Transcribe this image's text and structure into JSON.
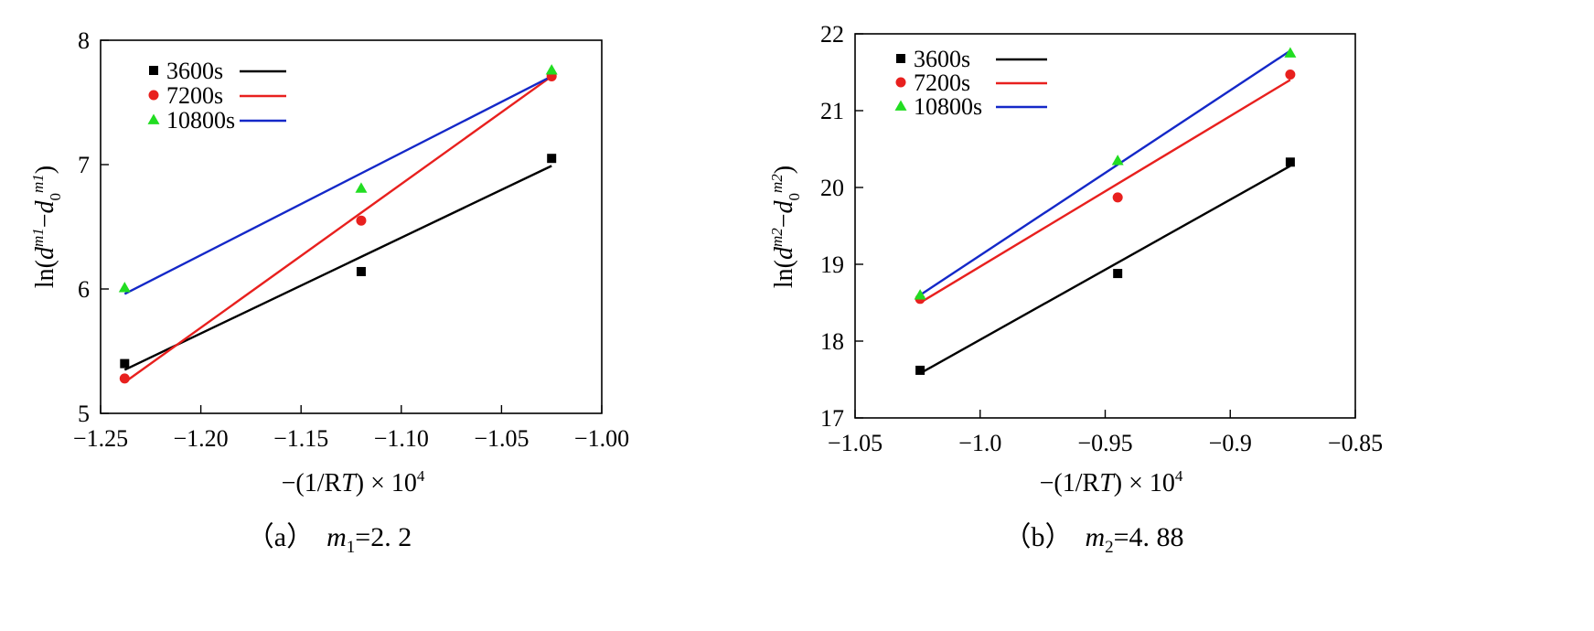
{
  "colors": {
    "3600s": "#000000",
    "7200s": "#e8201e",
    "10800s": "#1428c8",
    "10800s_marker": "#22dd22"
  },
  "chart_data": [
    {
      "type": "scatter",
      "panel": "a",
      "caption": {
        "prefix": "（a）",
        "var": "m",
        "sub": "1",
        "value": "=2. 2"
      },
      "ylabel": {
        "a": "ln(",
        "b": "d",
        "c": "m1",
        "d": "−",
        "e": "d",
        "f": "0",
        "g": "m1",
        "h": ")"
      },
      "xlabel": {
        "pre": "−(1/R",
        "it": "T",
        "post": ") × 10",
        "sup": "4"
      },
      "xlim": [
        -1.25,
        -1.0
      ],
      "ylim": [
        5,
        8
      ],
      "xticks": [
        -1.25,
        -1.2,
        -1.15,
        -1.1,
        -1.05,
        -1.0
      ],
      "xtick_labels": [
        "−1.25",
        "−1.20",
        "−1.15",
        "−1.10",
        "−1.05",
        "−1.00"
      ],
      "yticks": [
        5,
        6,
        7,
        8
      ],
      "ytick_labels": [
        "5",
        "6",
        "7",
        "8"
      ],
      "legend_position": "top-left",
      "series": [
        {
          "name": "3600s",
          "marker": "square",
          "x": [
            -1.238,
            -1.12,
            -1.025
          ],
          "y": [
            5.4,
            6.14,
            7.05
          ],
          "fit": [
            [
              -1.238,
              5.35
            ],
            [
              -1.025,
              6.99
            ]
          ]
        },
        {
          "name": "7200s",
          "marker": "circle",
          "x": [
            -1.238,
            -1.12,
            -1.025
          ],
          "y": [
            5.28,
            6.55,
            7.71
          ],
          "fit": [
            [
              -1.238,
              5.25
            ],
            [
              -1.025,
              7.71
            ]
          ]
        },
        {
          "name": "10800s",
          "marker": "triangle",
          "x": [
            -1.238,
            -1.12,
            -1.025
          ],
          "y": [
            6.01,
            6.81,
            7.76
          ],
          "fit": [
            [
              -1.238,
              5.96
            ],
            [
              -1.025,
              7.71
            ]
          ]
        }
      ]
    },
    {
      "type": "scatter",
      "panel": "b",
      "caption": {
        "prefix": "（b）",
        "var": "m",
        "sub": "2",
        "value": "=4. 88"
      },
      "ylabel": {
        "a": "ln(",
        "b": "d",
        "c": "m2",
        "d": "−",
        "e": "d",
        "f": "0",
        "g": "m2",
        "h": ")"
      },
      "xlabel": {
        "pre": "−(1/R",
        "it": "T",
        "post": ") × 10",
        "sup": "4"
      },
      "xlim": [
        -1.05,
        -0.85
      ],
      "ylim": [
        17,
        22
      ],
      "xticks": [
        -1.05,
        -1.0,
        -0.95,
        -0.9,
        -0.85
      ],
      "xtick_labels": [
        "−1.05",
        "−1.0",
        "−0.95",
        "−0.9",
        "−0.85"
      ],
      "yticks": [
        17,
        18,
        19,
        20,
        21,
        22
      ],
      "ytick_labels": [
        "17",
        "18",
        "19",
        "20",
        "21",
        "22"
      ],
      "legend_position": "top-left",
      "series": [
        {
          "name": "3600s",
          "marker": "square",
          "x": [
            -1.024,
            -0.945,
            -0.876
          ],
          "y": [
            17.62,
            18.88,
            20.33
          ],
          "fit": [
            [
              -1.024,
              17.58
            ],
            [
              -0.876,
              20.28
            ]
          ]
        },
        {
          "name": "7200s",
          "marker": "circle",
          "x": [
            -1.024,
            -0.945,
            -0.876
          ],
          "y": [
            18.55,
            19.87,
            21.47
          ],
          "fit": [
            [
              -1.024,
              18.5
            ],
            [
              -0.876,
              21.4
            ]
          ]
        },
        {
          "name": "10800s",
          "marker": "triangle",
          "x": [
            -1.024,
            -0.945,
            -0.876
          ],
          "y": [
            18.6,
            20.35,
            21.75
          ],
          "fit": [
            [
              -1.024,
              18.6
            ],
            [
              -0.876,
              21.78
            ]
          ]
        }
      ]
    }
  ]
}
